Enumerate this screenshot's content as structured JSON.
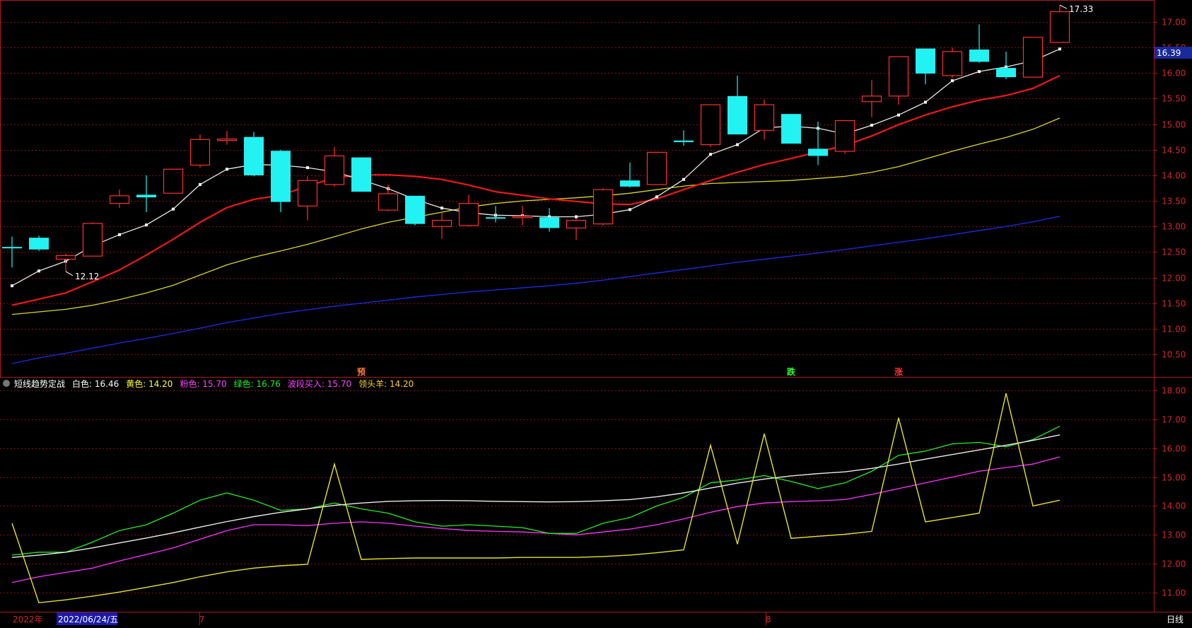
{
  "chart_data": {
    "type": "candlestick",
    "price_axis": {
      "ticks": [
        "17.00",
        "16.50",
        "16.00",
        "15.50",
        "15.00",
        "14.50",
        "14.00",
        "13.50",
        "13.00",
        "12.50",
        "12.00",
        "11.50",
        "11.00",
        "10.50"
      ],
      "ylim": [
        10.2,
        17.55
      ],
      "current_price": "16.39",
      "current_value": 16.39,
      "high_label": "17.33",
      "low_label": "12.12"
    },
    "time_axis": {
      "labels": [
        "2022年",
        "2022/06/24/五",
        "7",
        "8",
        "日线"
      ]
    },
    "candles": [
      {
        "o": 12.6,
        "h": 12.8,
        "l": 12.2,
        "c": 12.6,
        "color": "cyan"
      },
      {
        "o": 12.78,
        "h": 12.82,
        "l": 12.52,
        "c": 12.55,
        "color": "cyan"
      },
      {
        "o": 12.36,
        "h": 12.47,
        "l": 12.12,
        "c": 12.43,
        "color": "red"
      },
      {
        "o": 12.42,
        "h": 13.08,
        "l": 12.42,
        "c": 13.06,
        "color": "red"
      },
      {
        "o": 13.45,
        "h": 13.72,
        "l": 13.36,
        "c": 13.6,
        "color": "red"
      },
      {
        "o": 13.62,
        "h": 14.0,
        "l": 13.28,
        "c": 13.57,
        "color": "cyan"
      },
      {
        "o": 13.65,
        "h": 14.12,
        "l": 13.65,
        "c": 14.12,
        "color": "red"
      },
      {
        "o": 14.2,
        "h": 14.8,
        "l": 14.15,
        "c": 14.7,
        "color": "red"
      },
      {
        "o": 14.69,
        "h": 14.87,
        "l": 14.6,
        "c": 14.71,
        "color": "red"
      },
      {
        "o": 14.75,
        "h": 14.85,
        "l": 13.98,
        "c": 14.0,
        "color": "cyan"
      },
      {
        "o": 14.48,
        "h": 14.5,
        "l": 13.28,
        "c": 13.48,
        "color": "cyan"
      },
      {
        "o": 13.4,
        "h": 13.98,
        "l": 13.12,
        "c": 13.9,
        "color": "red"
      },
      {
        "o": 13.82,
        "h": 14.55,
        "l": 13.78,
        "c": 14.38,
        "color": "red"
      },
      {
        "o": 14.35,
        "h": 14.35,
        "l": 13.68,
        "c": 13.68,
        "color": "cyan"
      },
      {
        "o": 13.32,
        "h": 13.82,
        "l": 13.3,
        "c": 13.64,
        "color": "red"
      },
      {
        "o": 13.6,
        "h": 13.6,
        "l": 13.02,
        "c": 13.05,
        "color": "cyan"
      },
      {
        "o": 13.0,
        "h": 13.28,
        "l": 12.76,
        "c": 13.12,
        "color": "red"
      },
      {
        "o": 13.02,
        "h": 13.62,
        "l": 13.0,
        "c": 13.45,
        "color": "red"
      },
      {
        "o": 13.18,
        "h": 13.4,
        "l": 13.08,
        "c": 13.18,
        "color": "cyan"
      },
      {
        "o": 13.2,
        "h": 13.4,
        "l": 13.02,
        "c": 13.2,
        "color": "red"
      },
      {
        "o": 13.18,
        "h": 13.36,
        "l": 12.9,
        "c": 12.97,
        "color": "cyan"
      },
      {
        "o": 12.97,
        "h": 13.16,
        "l": 12.74,
        "c": 13.12,
        "color": "red"
      },
      {
        "o": 13.05,
        "h": 13.75,
        "l": 13.02,
        "c": 13.72,
        "color": "red"
      },
      {
        "o": 13.9,
        "h": 14.25,
        "l": 13.76,
        "c": 13.78,
        "color": "cyan"
      },
      {
        "o": 13.82,
        "h": 14.45,
        "l": 13.82,
        "c": 14.45,
        "color": "red"
      },
      {
        "o": 14.68,
        "h": 14.88,
        "l": 14.58,
        "c": 14.65,
        "color": "cyan"
      },
      {
        "o": 14.6,
        "h": 15.38,
        "l": 14.55,
        "c": 15.38,
        "color": "red"
      },
      {
        "o": 15.55,
        "h": 15.95,
        "l": 14.8,
        "c": 14.8,
        "color": "cyan"
      },
      {
        "o": 14.88,
        "h": 15.48,
        "l": 14.7,
        "c": 15.38,
        "color": "red"
      },
      {
        "o": 15.2,
        "h": 15.2,
        "l": 14.62,
        "c": 14.62,
        "color": "cyan"
      },
      {
        "o": 14.52,
        "h": 15.05,
        "l": 14.2,
        "c": 14.38,
        "color": "cyan"
      },
      {
        "o": 14.47,
        "h": 15.07,
        "l": 14.42,
        "c": 15.07,
        "color": "red"
      },
      {
        "o": 15.44,
        "h": 15.86,
        "l": 15.14,
        "c": 15.55,
        "color": "red"
      },
      {
        "o": 15.55,
        "h": 16.32,
        "l": 15.38,
        "c": 16.32,
        "color": "red"
      },
      {
        "o": 16.48,
        "h": 16.48,
        "l": 15.78,
        "c": 15.99,
        "color": "cyan"
      },
      {
        "o": 15.95,
        "h": 16.5,
        "l": 15.9,
        "c": 16.42,
        "color": "red"
      },
      {
        "o": 16.46,
        "h": 16.95,
        "l": 16.2,
        "c": 16.22,
        "color": "cyan"
      },
      {
        "o": 16.1,
        "h": 16.42,
        "l": 15.88,
        "c": 15.92,
        "color": "cyan"
      },
      {
        "o": 15.92,
        "h": 16.7,
        "l": 15.92,
        "c": 16.7,
        "color": "red"
      },
      {
        "o": 16.6,
        "h": 17.33,
        "l": 16.6,
        "c": 17.2,
        "color": "red"
      }
    ],
    "ma_white": [
      11.84,
      12.13,
      12.32,
      12.62,
      12.84,
      13.03,
      13.34,
      13.82,
      14.12,
      14.21,
      14.2,
      14.15,
      14.07,
      13.91,
      13.74,
      13.53,
      13.36,
      13.27,
      13.22,
      13.21,
      13.19,
      13.19,
      13.24,
      13.33,
      13.58,
      13.92,
      14.41,
      14.6,
      14.93,
      14.96,
      14.92,
      14.81,
      14.98,
      15.18,
      15.43,
      15.85,
      16.03,
      16.12,
      16.24,
      16.47
    ],
    "ma_red": [
      11.46,
      11.58,
      11.7,
      11.92,
      12.15,
      12.44,
      12.75,
      13.08,
      13.37,
      13.53,
      13.61,
      13.79,
      13.95,
      14.01,
      14.01,
      13.98,
      13.92,
      13.81,
      13.68,
      13.61,
      13.54,
      13.49,
      13.44,
      13.43,
      13.54,
      13.72,
      13.9,
      14.06,
      14.21,
      14.33,
      14.46,
      14.58,
      14.77,
      14.99,
      15.18,
      15.34,
      15.47,
      15.56,
      15.7,
      15.95
    ],
    "ma_yellow": [
      11.28,
      11.33,
      11.38,
      11.46,
      11.57,
      11.7,
      11.85,
      12.05,
      12.25,
      12.4,
      12.52,
      12.65,
      12.8,
      12.95,
      13.08,
      13.18,
      13.28,
      13.38,
      13.45,
      13.5,
      13.53,
      13.56,
      13.6,
      13.65,
      13.72,
      13.79,
      13.84,
      13.86,
      13.88,
      13.9,
      13.94,
      13.98,
      14.06,
      14.17,
      14.32,
      14.47,
      14.61,
      14.74,
      14.9,
      15.12
    ],
    "ma_blue": [
      10.32,
      10.43,
      10.52,
      10.62,
      10.72,
      10.81,
      10.91,
      11.01,
      11.12,
      11.21,
      11.3,
      11.37,
      11.44,
      11.5,
      11.56,
      11.62,
      11.67,
      11.72,
      11.76,
      11.8,
      11.84,
      11.89,
      11.95,
      12.02,
      12.09,
      12.16,
      12.23,
      12.3,
      12.36,
      12.42,
      12.48,
      12.55,
      12.62,
      12.69,
      12.76,
      12.84,
      12.92,
      13.0,
      13.09,
      13.2
    ],
    "signals": [
      {
        "index": 13,
        "label": "预"
      },
      {
        "index": 29,
        "label": "跌"
      },
      {
        "index": 33,
        "label": "涨"
      }
    ],
    "indicator": {
      "name": "短线趋势定战",
      "legend": [
        {
          "label": "白色: 16.46",
          "color": "#ffffff"
        },
        {
          "label": "黄色: 14.20",
          "color": "#ffff33"
        },
        {
          "label": "粉色: 15.70",
          "color": "#ff44ff"
        },
        {
          "label": "绿色: 16.76",
          "color": "#22ee22"
        },
        {
          "label": "波段买入: 15.70",
          "color": "#ff44ff"
        },
        {
          "label": "领头羊: 14.20",
          "color": "#ffcc33"
        }
      ],
      "ticks": [
        "18.00",
        "17.00",
        "16.00",
        "15.00",
        "14.00",
        "13.00",
        "12.00",
        "11.00"
      ],
      "ylim": [
        10.3,
        18.35
      ],
      "white": [
        12.22,
        12.3,
        12.4,
        12.55,
        12.72,
        12.89,
        13.07,
        13.27,
        13.46,
        13.63,
        13.78,
        13.9,
        14.02,
        14.1,
        14.16,
        14.18,
        14.19,
        14.18,
        14.16,
        14.15,
        14.14,
        14.15,
        14.18,
        14.22,
        14.32,
        14.45,
        14.62,
        14.79,
        14.93,
        15.04,
        15.12,
        15.18,
        15.3,
        15.45,
        15.62,
        15.78,
        15.94,
        16.1,
        16.27,
        16.46
      ],
      "green": [
        12.3,
        12.4,
        12.4,
        12.75,
        13.15,
        13.35,
        13.75,
        14.2,
        14.45,
        14.2,
        13.85,
        13.9,
        14.1,
        13.9,
        13.75,
        13.45,
        13.3,
        13.35,
        13.3,
        13.25,
        13.05,
        13.05,
        13.4,
        13.6,
        14.0,
        14.3,
        14.8,
        14.9,
        15.05,
        14.85,
        14.6,
        14.8,
        15.2,
        15.75,
        15.9,
        16.15,
        16.2,
        16.05,
        16.3,
        16.76
      ],
      "pink": [
        11.35,
        11.55,
        11.7,
        11.85,
        12.1,
        12.32,
        12.55,
        12.85,
        13.15,
        13.35,
        13.35,
        13.32,
        13.4,
        13.45,
        13.4,
        13.3,
        13.22,
        13.15,
        13.12,
        13.1,
        13.05,
        13.0,
        13.1,
        13.2,
        13.35,
        13.55,
        13.78,
        13.98,
        14.1,
        14.15,
        14.18,
        14.22,
        14.4,
        14.6,
        14.8,
        15.0,
        15.2,
        15.33,
        15.45,
        15.7
      ],
      "yellow_base": [
        10.55,
        10.65,
        10.75,
        10.88,
        11.02,
        11.18,
        11.35,
        11.55,
        11.72,
        11.85,
        11.93,
        11.98,
        12.05,
        12.15,
        12.18,
        12.2,
        12.2,
        12.2,
        12.2,
        12.22,
        12.22,
        12.22,
        12.25,
        12.3,
        12.38,
        12.48,
        12.58,
        12.68,
        12.78,
        12.88,
        12.95,
        13.02,
        13.12,
        13.28,
        13.45,
        13.6,
        13.75,
        13.88,
        14.0,
        14.2
      ],
      "yellow_spikes": [
        {
          "index": 0,
          "peak": 13.4
        },
        {
          "index": 12,
          "peak": 15.45
        },
        {
          "index": 26,
          "peak": 16.1
        },
        {
          "index": 28,
          "peak": 16.5
        },
        {
          "index": 33,
          "peak": 17.05
        },
        {
          "index": 37,
          "peak": 17.9
        }
      ]
    }
  }
}
